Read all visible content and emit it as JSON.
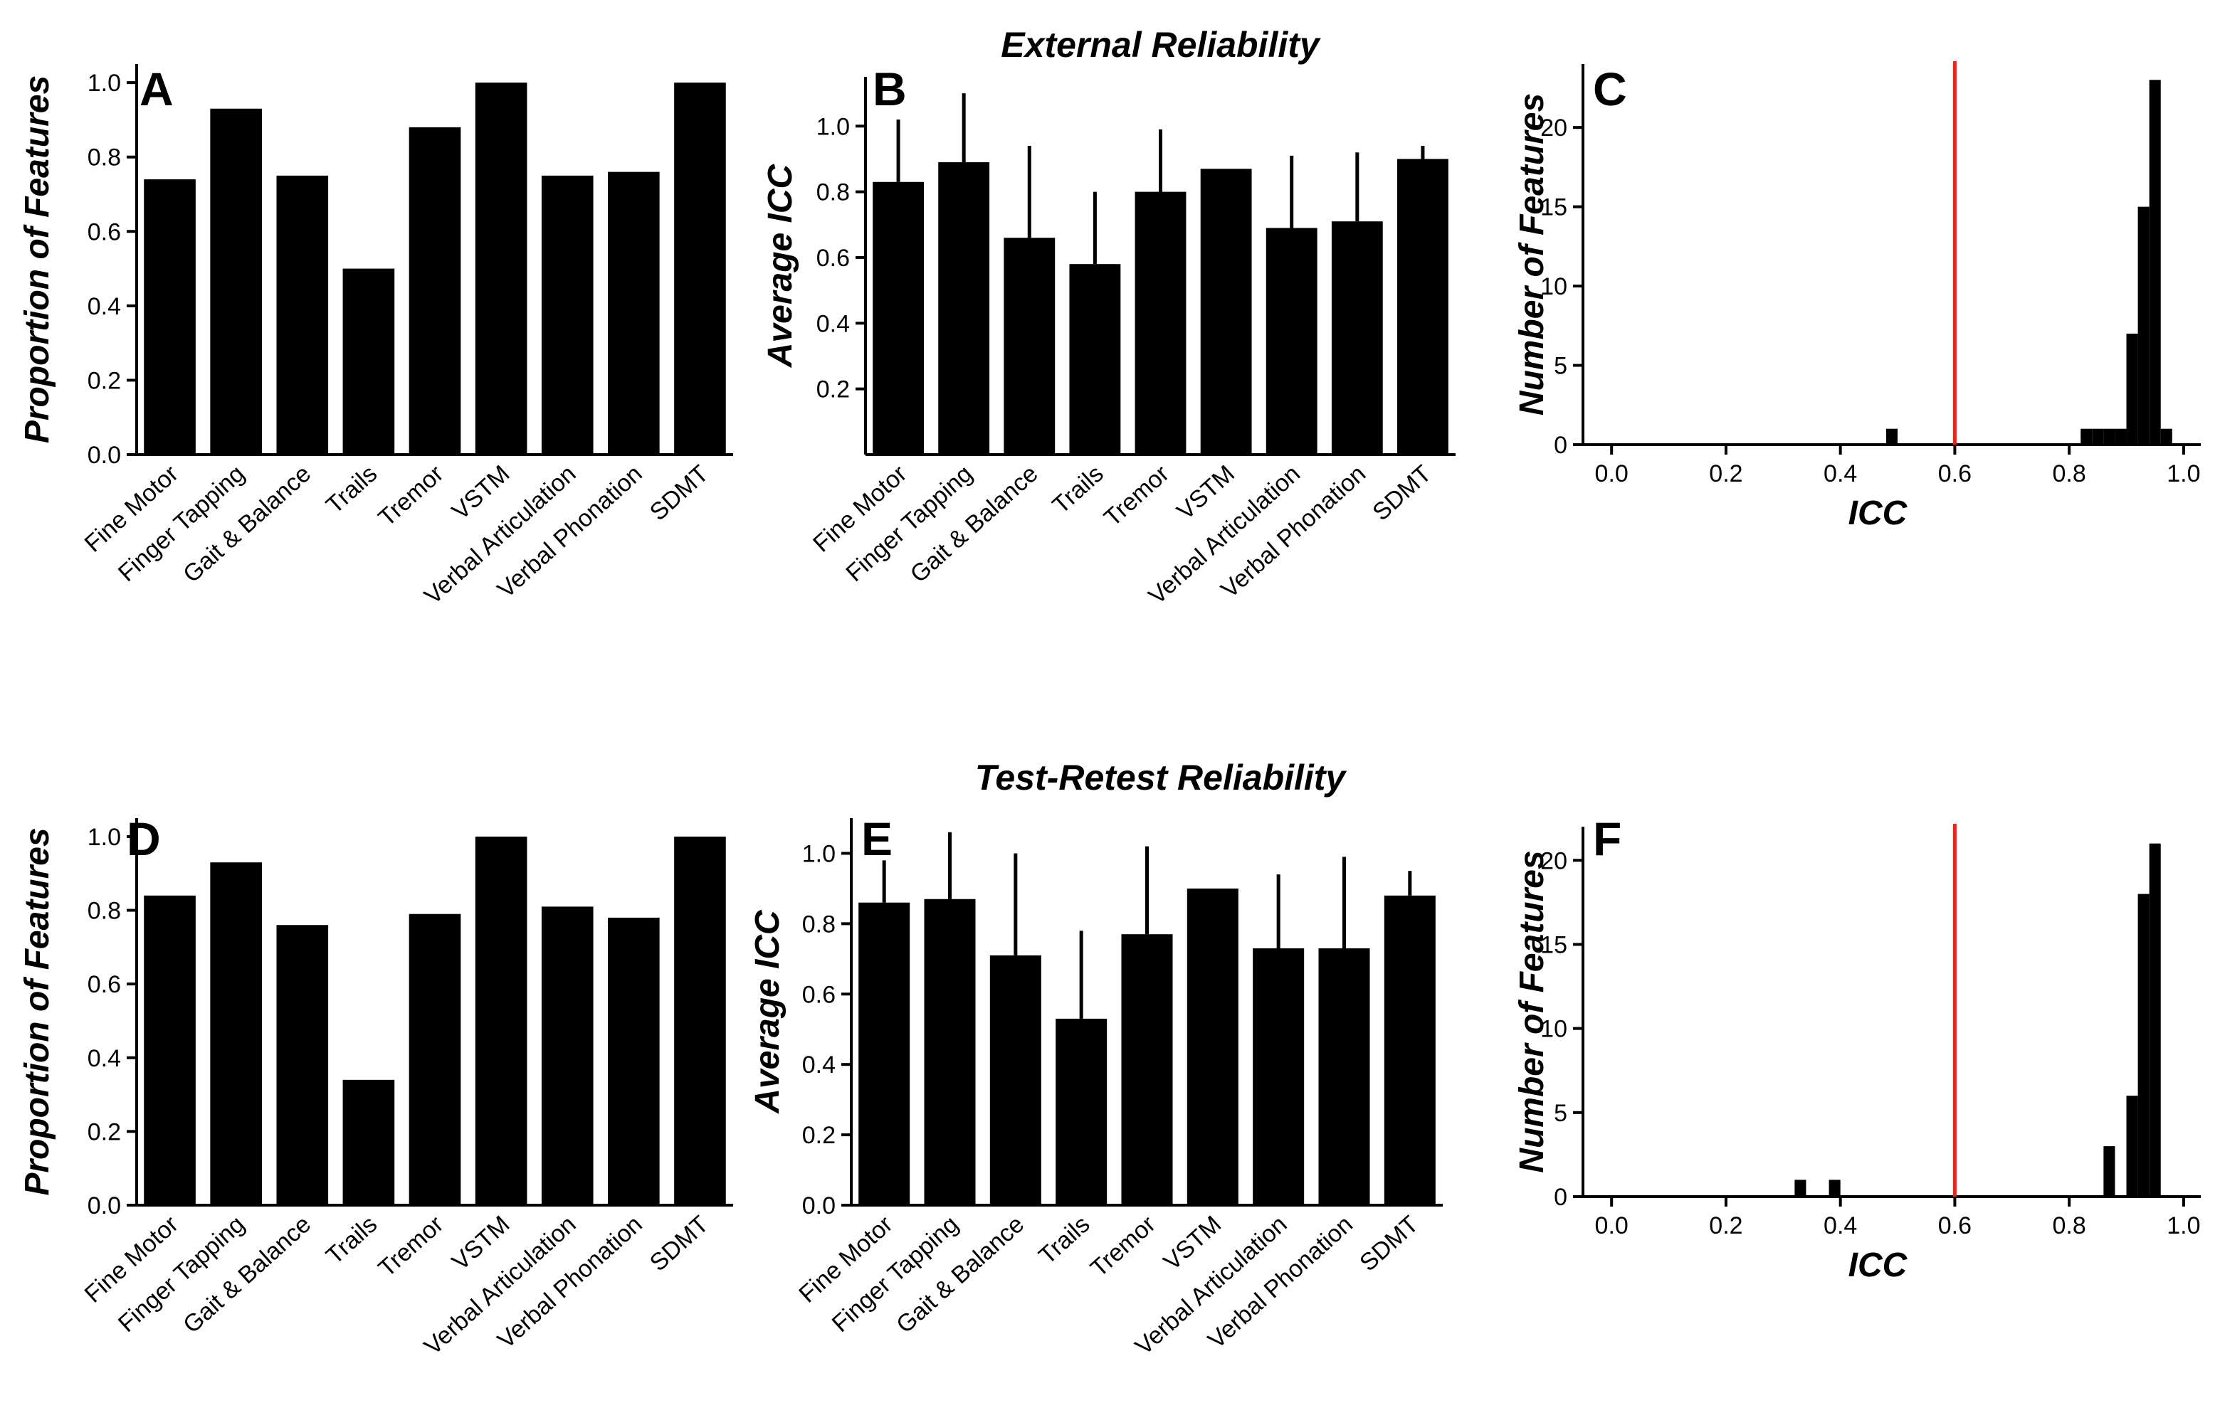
{
  "row_titles": {
    "top": "External Reliability",
    "bottom": "Test-Retest Reliability"
  },
  "colors": {
    "bar": "#000000",
    "threshold": "#e8261c"
  },
  "chart_data": [
    {
      "id": "A",
      "label": "A",
      "type": "bar",
      "categories": [
        "Fine Motor",
        "Finger Tapping",
        "Gait & Balance",
        "Trails",
        "Tremor",
        "VSTM",
        "Verbal Articulation",
        "Verbal Phonation",
        "SDMT"
      ],
      "values": [
        0.74,
        0.93,
        0.75,
        0.5,
        0.88,
        1.0,
        0.75,
        0.76,
        1.0
      ],
      "ylabel": "Proportion of Features",
      "xlabel": "",
      "ylim": [
        0,
        1.05
      ],
      "yticks": [
        "0.0",
        "0.2",
        "0.4",
        "0.6",
        "0.8",
        "1.0"
      ]
    },
    {
      "id": "B",
      "label": "B",
      "type": "bar",
      "categories": [
        "Fine Motor",
        "Finger Tapping",
        "Gait & Balance",
        "Trails",
        "Tremor",
        "VSTM",
        "Verbal Articulation",
        "Verbal Phonation",
        "SDMT"
      ],
      "values": [
        0.83,
        0.89,
        0.66,
        0.58,
        0.8,
        0.87,
        0.69,
        0.71,
        0.9
      ],
      "errors": [
        0.19,
        0.21,
        0.28,
        0.22,
        0.19,
        0.0,
        0.22,
        0.21,
        0.04
      ],
      "ylabel": "Average ICC",
      "xlabel": "",
      "ylim": [
        0,
        1.15
      ],
      "yticks": [
        "0.2",
        "0.4",
        "0.6",
        "0.8",
        "1.0"
      ]
    },
    {
      "id": "C",
      "label": "C",
      "type": "bar",
      "subtype": "histogram",
      "bin_width": 0.02,
      "bins": [
        {
          "x": 0.48,
          "count": 1
        },
        {
          "x": 0.82,
          "count": 1
        },
        {
          "x": 0.84,
          "count": 1
        },
        {
          "x": 0.86,
          "count": 1
        },
        {
          "x": 0.88,
          "count": 1
        },
        {
          "x": 0.9,
          "count": 7
        },
        {
          "x": 0.92,
          "count": 15
        },
        {
          "x": 0.94,
          "count": 23
        },
        {
          "x": 0.96,
          "count": 1
        }
      ],
      "threshold": 0.6,
      "xlabel": "ICC",
      "ylabel": "Number of Features",
      "xlim": [
        -0.05,
        1.03
      ],
      "ylim": [
        0,
        24
      ],
      "xticks": [
        "0.0",
        "0.2",
        "0.4",
        "0.6",
        "0.8",
        "1.0"
      ],
      "yticks": [
        "0",
        "5",
        "10",
        "15",
        "20"
      ]
    },
    {
      "id": "D",
      "label": "D",
      "type": "bar",
      "categories": [
        "Fine Motor",
        "Finger Tapping",
        "Gait & Balance",
        "Trails",
        "Tremor",
        "VSTM",
        "Verbal Articulation",
        "Verbal Phonation",
        "SDMT"
      ],
      "values": [
        0.84,
        0.93,
        0.76,
        0.34,
        0.79,
        1.0,
        0.81,
        0.78,
        1.0
      ],
      "ylabel": "Proportion of Features",
      "xlabel": "",
      "ylim": [
        0,
        1.05
      ],
      "yticks": [
        "0.0",
        "0.2",
        "0.4",
        "0.6",
        "0.8",
        "1.0"
      ]
    },
    {
      "id": "E",
      "label": "E",
      "type": "bar",
      "categories": [
        "Fine Motor",
        "Finger Tapping",
        "Gait & Balance",
        "Trails",
        "Tremor",
        "VSTM",
        "Verbal Articulation",
        "Verbal Phonation",
        "SDMT"
      ],
      "values": [
        0.86,
        0.87,
        0.71,
        0.53,
        0.77,
        0.9,
        0.73,
        0.73,
        0.88
      ],
      "errors": [
        0.12,
        0.19,
        0.29,
        0.25,
        0.25,
        0.0,
        0.21,
        0.26,
        0.07
      ],
      "ylabel": "Average ICC",
      "xlabel": "",
      "ylim": [
        0,
        1.1
      ],
      "yticks": [
        "0.0",
        "0.2",
        "0.4",
        "0.6",
        "0.8",
        "1.0"
      ]
    },
    {
      "id": "F",
      "label": "F",
      "type": "bar",
      "subtype": "histogram",
      "bin_width": 0.02,
      "bins": [
        {
          "x": 0.32,
          "count": 1
        },
        {
          "x": 0.38,
          "count": 1
        },
        {
          "x": 0.86,
          "count": 3
        },
        {
          "x": 0.9,
          "count": 6
        },
        {
          "x": 0.92,
          "count": 18
        },
        {
          "x": 0.94,
          "count": 21
        }
      ],
      "threshold": 0.6,
      "xlabel": "ICC",
      "ylabel": "Number of Features",
      "xlim": [
        -0.05,
        1.03
      ],
      "ylim": [
        0,
        22
      ],
      "xticks": [
        "0.0",
        "0.2",
        "0.4",
        "0.6",
        "0.8",
        "1.0"
      ],
      "yticks": [
        "0",
        "5",
        "10",
        "15",
        "20"
      ]
    }
  ]
}
